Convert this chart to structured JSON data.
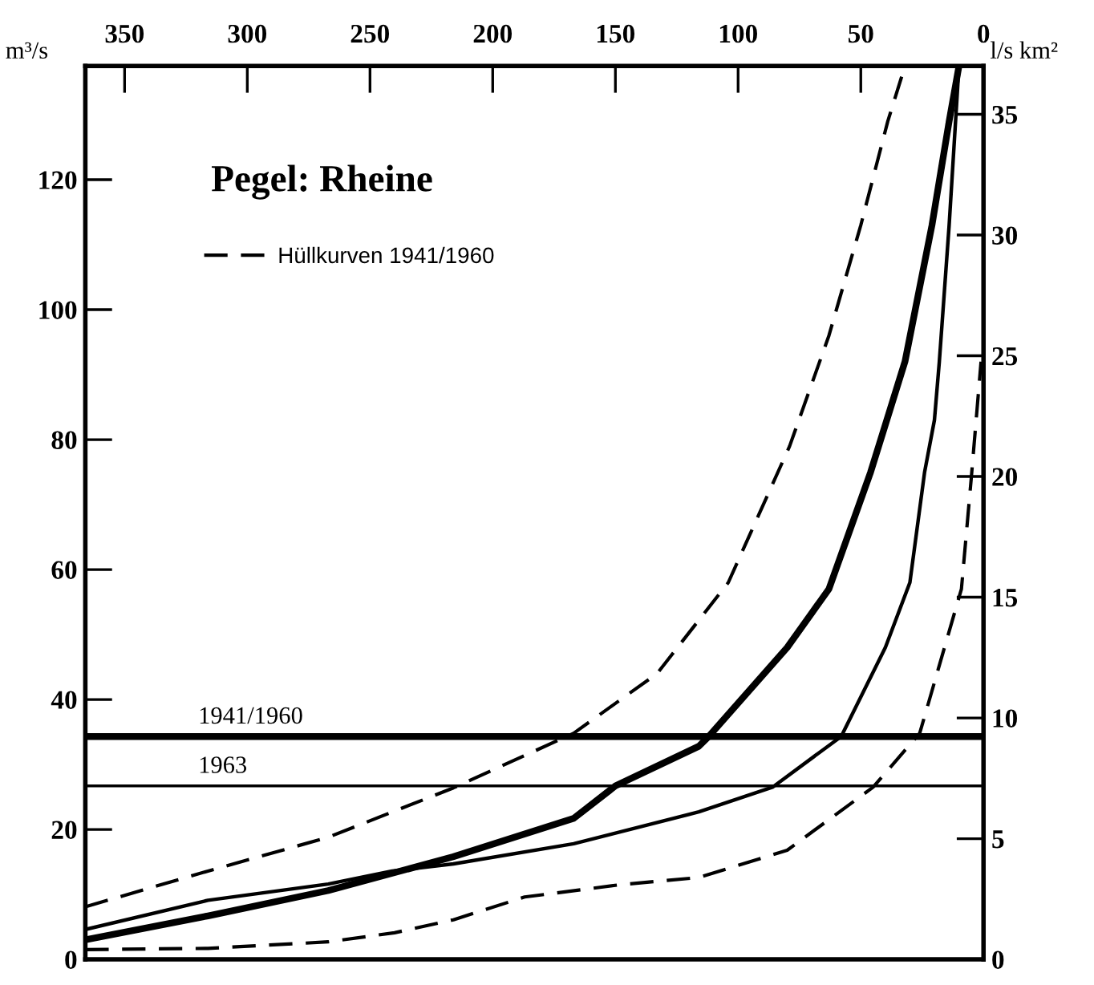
{
  "chart_data": {
    "type": "line",
    "title": "Pegel: Rheine",
    "ylabel": "m³/s",
    "y2label": "l/s km²",
    "xlim": [
      366,
      0
    ],
    "xticks": [
      350,
      300,
      250,
      200,
      150,
      100,
      50,
      0
    ],
    "ylim": [
      0,
      137.5
    ],
    "y2lim": [
      0,
      37
    ],
    "yticks": [
      0,
      20,
      40,
      60,
      80,
      100,
      120
    ],
    "y2ticks": [
      0,
      5,
      10,
      15,
      20,
      25,
      30,
      35
    ],
    "series": [
      {
        "color": "#000000",
        "line_style": "solid",
        "x": [
          366,
          316,
          267,
          216,
          167,
          150,
          116,
          112,
          80,
          63,
          46,
          32,
          21,
          14,
          10
        ],
        "values": [
          3,
          6.7,
          10.6,
          15.8,
          21.7,
          26.7,
          32.8,
          34.3,
          48,
          57,
          75,
          92,
          113,
          129,
          137.5
        ]
      },
      {
        "color": "#000000",
        "line_style": "solid",
        "x": [
          366,
          316,
          267,
          241,
          216,
          167,
          116,
          86,
          67,
          58,
          40,
          30,
          24,
          20,
          18,
          14,
          10
        ],
        "values": [
          4.6,
          9.1,
          11.6,
          13.6,
          14.7,
          17.8,
          22.7,
          26.5,
          31.8,
          34.3,
          48,
          58,
          75,
          83,
          92,
          113,
          137.5
        ]
      },
      {
        "name": "Hüllkurven 1941/1960",
        "color": "#000000",
        "line_style": "dashed",
        "x": [
          366,
          316,
          267,
          216,
          167,
          133,
          104,
          79,
          63,
          50,
          39,
          32
        ],
        "values": [
          8.1,
          13.6,
          18.8,
          26.4,
          34.8,
          44,
          58,
          79,
          96,
          113,
          129,
          137.5
        ]
      },
      {
        "color": "#000000",
        "line_style": "dashed",
        "x": [
          366,
          316,
          267,
          240,
          216,
          187,
          148,
          116,
          80,
          45,
          26,
          9,
          5,
          1
        ],
        "values": [
          1.5,
          1.7,
          2.7,
          4.1,
          6.1,
          9.6,
          11.5,
          12.6,
          16.8,
          26.5,
          34.8,
          57,
          74,
          92
        ]
      }
    ],
    "ref_lines": [
      {
        "axis": "y",
        "value": 34.3,
        "color": "#000000"
      },
      {
        "axis": "y",
        "value": 26.7,
        "color": "#000000"
      }
    ],
    "annotations": [
      {
        "text": "1941/1960",
        "x": 320,
        "y": 34.3
      },
      {
        "text": "1963",
        "x": 320,
        "y": 26.7
      }
    ],
    "legend": "top left",
    "grid": false
  }
}
